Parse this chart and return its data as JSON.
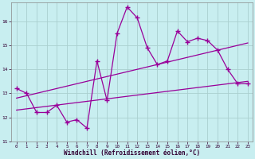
{
  "xlabel": "Windchill (Refroidissement éolien,°C)",
  "background_color": "#c8eef0",
  "line_color": "#990099",
  "grid_color": "#aacfcf",
  "xlim": [
    -0.5,
    23.5
  ],
  "ylim": [
    11.0,
    16.8
  ],
  "xticks": [
    0,
    1,
    2,
    3,
    4,
    5,
    6,
    7,
    8,
    9,
    10,
    11,
    12,
    13,
    14,
    15,
    16,
    17,
    18,
    19,
    20,
    21,
    22,
    23
  ],
  "yticks": [
    11,
    12,
    13,
    14,
    15,
    16
  ],
  "line1_x": [
    0,
    1,
    2,
    3,
    4,
    5,
    6,
    7,
    8,
    9,
    10,
    11,
    12,
    13,
    14,
    15,
    16,
    17,
    18,
    19,
    20,
    21,
    22,
    23
  ],
  "line1_y": [
    13.2,
    13.0,
    12.2,
    12.2,
    12.5,
    11.8,
    11.9,
    11.55,
    14.35,
    12.7,
    15.5,
    16.6,
    16.15,
    14.9,
    14.2,
    14.35,
    15.6,
    15.15,
    15.3,
    15.2,
    14.8,
    14.0,
    13.4,
    13.4
  ],
  "line2_x": [
    0,
    23
  ],
  "line2_y": [
    12.8,
    15.1
  ],
  "line3_x": [
    0,
    23
  ],
  "line3_y": [
    12.3,
    13.5
  ]
}
